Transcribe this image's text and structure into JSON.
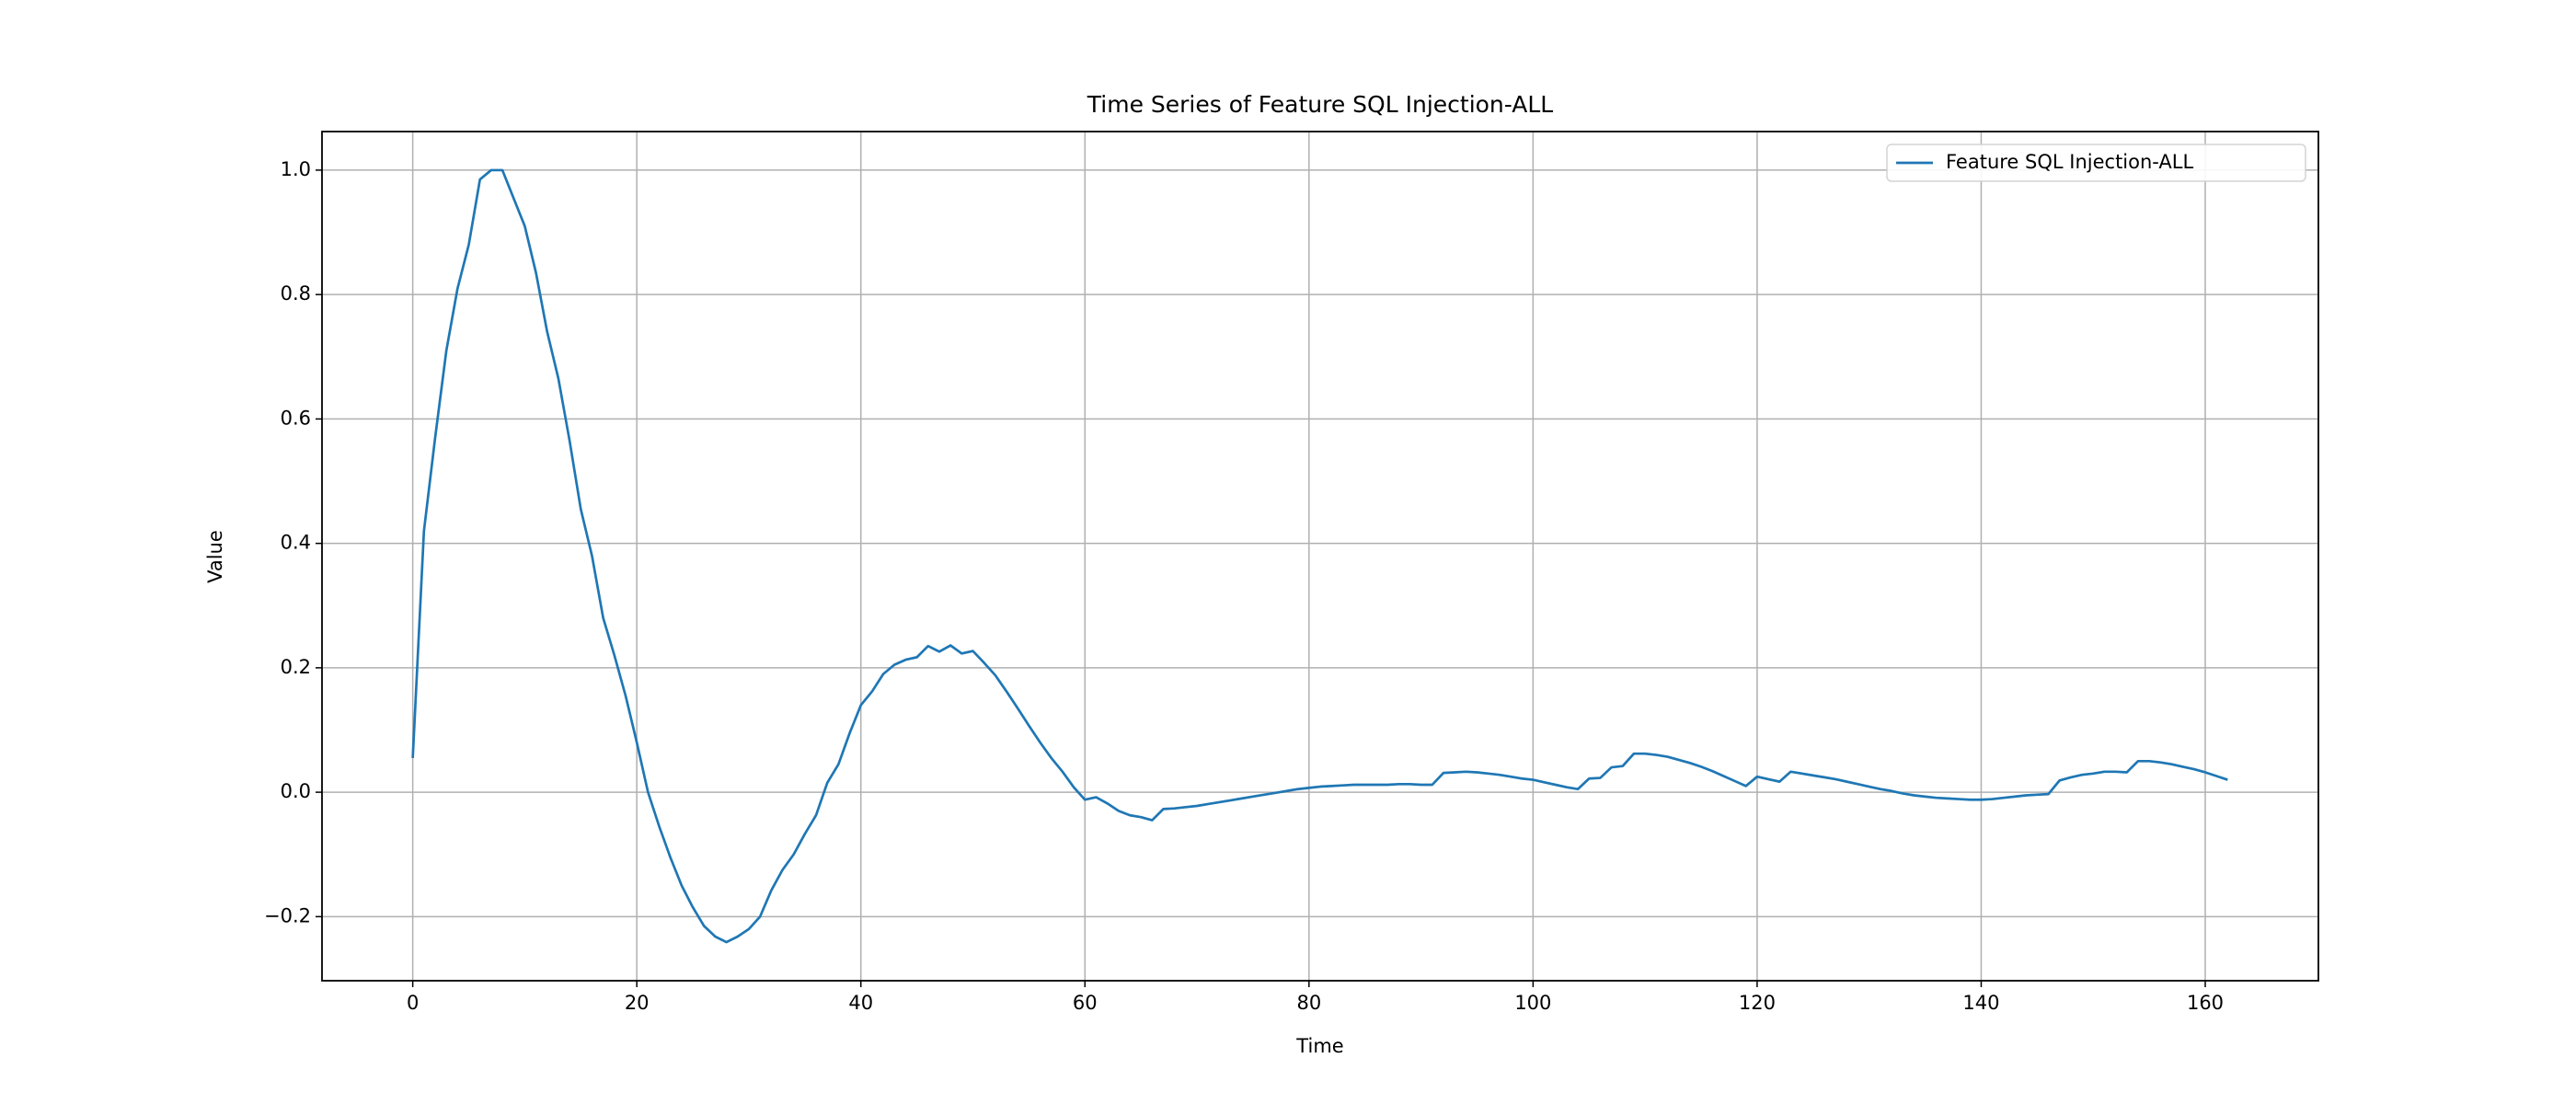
{
  "chart_data": {
    "type": "line",
    "title": "Time Series of Feature SQL Injection-ALL",
    "x_label": "Time",
    "y_label": "Value",
    "x": [
      0,
      1,
      2,
      3,
      4,
      5,
      6,
      7,
      8,
      9,
      10,
      11,
      12,
      13,
      14,
      15,
      16,
      17,
      18,
      19,
      20,
      21,
      22,
      23,
      24,
      25,
      26,
      27,
      28,
      29,
      30,
      31,
      32,
      33,
      34,
      35,
      36,
      37,
      38,
      39,
      40,
      41,
      42,
      43,
      44,
      45,
      46,
      47,
      48,
      49,
      50,
      51,
      52,
      53,
      54,
      55,
      56,
      57,
      58,
      59,
      60,
      61,
      62,
      63,
      64,
      65,
      66,
      67,
      68,
      69,
      70,
      71,
      72,
      73,
      74,
      75,
      76,
      77,
      78,
      79,
      80,
      81,
      82,
      83,
      84,
      85,
      86,
      87,
      88,
      89,
      90,
      91,
      92,
      93,
      94,
      95,
      96,
      97,
      98,
      99,
      100,
      101,
      102,
      103,
      104,
      105,
      106,
      107,
      108,
      109,
      110,
      111,
      112,
      113,
      114,
      115,
      116,
      117,
      118,
      119,
      120,
      121,
      122,
      123,
      124,
      125,
      126,
      127,
      128,
      129,
      130,
      131,
      132,
      133,
      134,
      135,
      136,
      137,
      138,
      139,
      140,
      141,
      142,
      143,
      144,
      145,
      146,
      147,
      148,
      149,
      150,
      151,
      152,
      153,
      154,
      155,
      156,
      157,
      158,
      159,
      160,
      161,
      162
    ],
    "series": [
      {
        "name": "Feature SQL Injection-ALL",
        "color": "#1f77b4",
        "values": [
          0.055,
          0.42,
          0.57,
          0.71,
          0.81,
          0.88,
          0.985,
          1.0,
          1.0,
          0.955,
          0.91,
          0.835,
          0.74,
          0.665,
          0.565,
          0.455,
          0.38,
          0.28,
          0.22,
          0.155,
          0.08,
          0.0,
          -0.055,
          -0.105,
          -0.15,
          -0.185,
          -0.215,
          -0.232,
          -0.241,
          -0.232,
          -0.22,
          -0.2,
          -0.158,
          -0.125,
          -0.1,
          -0.067,
          -0.037,
          0.015,
          0.045,
          0.095,
          0.14,
          0.162,
          0.19,
          0.205,
          0.213,
          0.217,
          0.235,
          0.226,
          0.236,
          0.223,
          0.227,
          0.208,
          0.188,
          0.162,
          0.135,
          0.107,
          0.08,
          0.055,
          0.033,
          0.008,
          -0.012,
          -0.008,
          -0.018,
          -0.03,
          -0.037,
          -0.04,
          -0.045,
          -0.027,
          -0.026,
          -0.024,
          -0.022,
          -0.019,
          -0.016,
          -0.013,
          -0.01,
          -0.007,
          -0.004,
          -0.001,
          0.002,
          0.005,
          0.007,
          0.009,
          0.01,
          0.011,
          0.012,
          0.012,
          0.012,
          0.012,
          0.013,
          0.013,
          0.012,
          0.012,
          0.031,
          0.032,
          0.033,
          0.032,
          0.03,
          0.028,
          0.025,
          0.022,
          0.02,
          0.016,
          0.012,
          0.008,
          0.005,
          0.022,
          0.023,
          0.04,
          0.042,
          0.062,
          0.062,
          0.06,
          0.057,
          0.052,
          0.047,
          0.041,
          0.034,
          0.026,
          0.018,
          0.01,
          0.025,
          0.021,
          0.017,
          0.033,
          0.03,
          0.027,
          0.024,
          0.021,
          0.017,
          0.013,
          0.009,
          0.005,
          0.002,
          -0.002,
          -0.005,
          -0.007,
          -0.009,
          -0.01,
          -0.011,
          -0.012,
          -0.012,
          -0.011,
          -0.009,
          -0.007,
          -0.005,
          -0.004,
          -0.003,
          0.019,
          0.024,
          0.028,
          0.03,
          0.033,
          0.033,
          0.032,
          0.05,
          0.05,
          0.048,
          0.045,
          0.041,
          0.037,
          0.032,
          0.026,
          0.02
        ]
      }
    ],
    "xlim": [
      -8.1,
      170.1
    ],
    "ylim": [
      -0.303,
      1.062
    ],
    "xticks": [
      0,
      20,
      40,
      60,
      80,
      100,
      120,
      140,
      160
    ],
    "yticks": [
      {
        "value": -0.2,
        "label": "−0.2"
      },
      {
        "value": 0,
        "label": "0.0"
      },
      {
        "value": 0.2,
        "label": "0.2"
      },
      {
        "value": 0.4,
        "label": "0.4"
      },
      {
        "value": 0.6,
        "label": "0.6"
      },
      {
        "value": 0.8,
        "label": "0.8"
      },
      {
        "value": 1.0,
        "label": "1.0"
      }
    ],
    "grid": true,
    "legend": "upper right"
  }
}
